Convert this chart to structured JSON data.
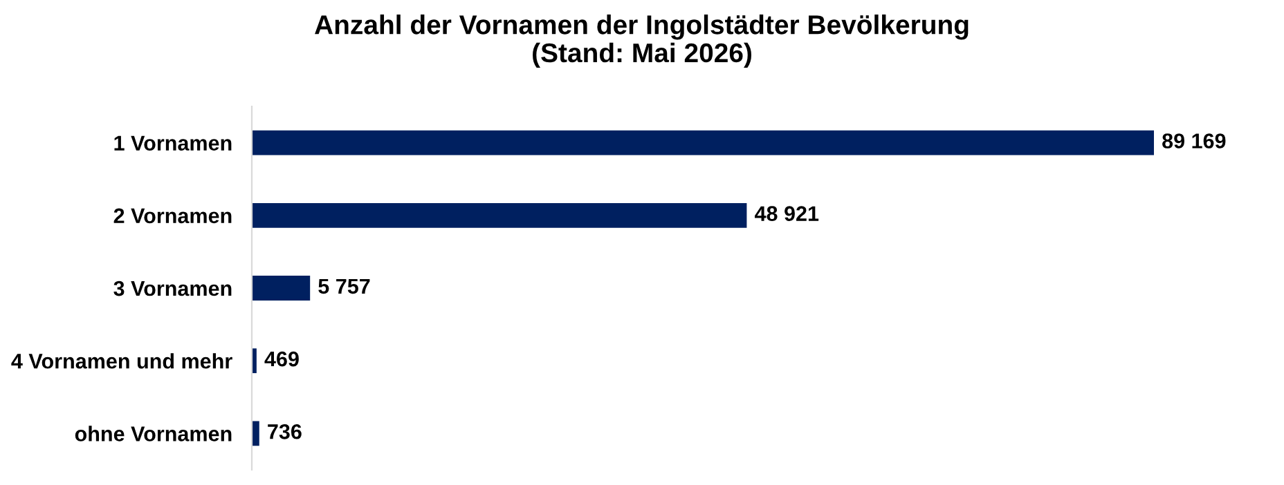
{
  "chart_data": {
    "type": "bar",
    "orientation": "horizontal",
    "title": "Anzahl der Vornamen der Ingolstädter Bevölkerung\n(Stand: Mai 2026)",
    "categories": [
      "1 Vornamen",
      "2 Vornamen",
      "3 Vornamen",
      "4 Vornamen und mehr",
      "ohne Vornamen"
    ],
    "values": [
      89169,
      48921,
      5757,
      469,
      736
    ],
    "value_labels": [
      "89 169",
      "48 921",
      "5 757",
      "469",
      "736"
    ],
    "color": "#002060",
    "tick_labels": "y"
  }
}
